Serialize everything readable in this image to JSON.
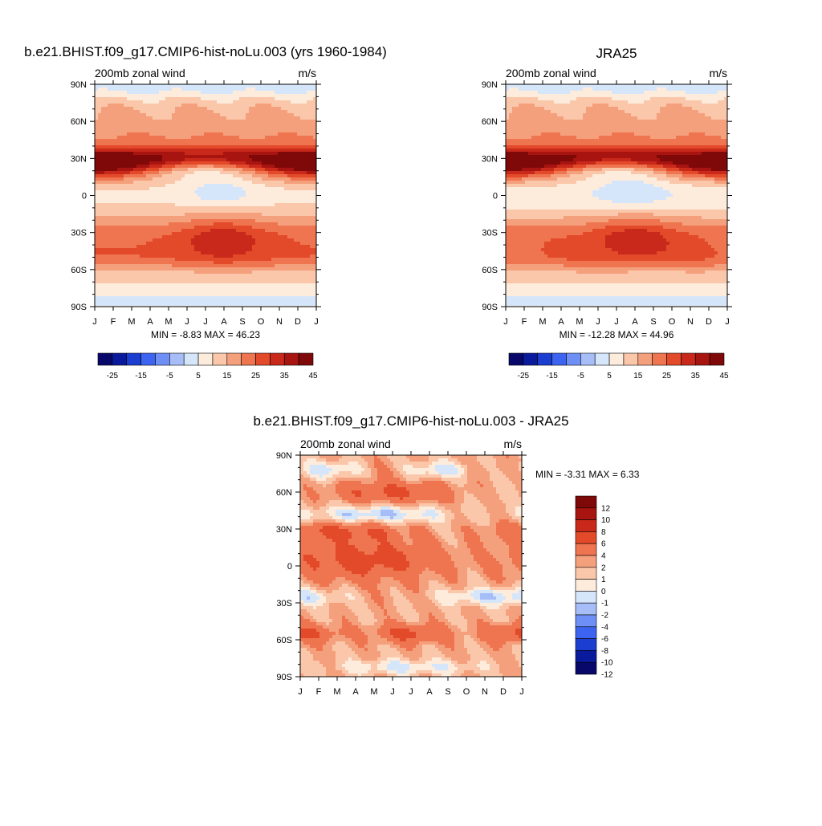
{
  "colors": {
    "levels": [
      "#08086b",
      "#0a1a9c",
      "#1c3ed0",
      "#3c64f0",
      "#6e8ff5",
      "#a6bdf7",
      "#d6e6fa",
      "#fdebdc",
      "#fbc7aa",
      "#f5a07c",
      "#ef7450",
      "#e34a2a",
      "#c9291a",
      "#a81410",
      "#7f0808"
    ],
    "diff_levels": [
      "#08086b",
      "#0a1a9c",
      "#1c3ed0",
      "#3c64f0",
      "#6e8ff5",
      "#a6bdf7",
      "#d6e6fa",
      "#fdebdc",
      "#fbc7aa",
      "#f5a07c",
      "#ef7450",
      "#e34a2a",
      "#c9291a",
      "#a81410",
      "#7f0808"
    ]
  },
  "chart_data": [
    {
      "type": "heatmap",
      "title": "b.e21.BHIST.f09_g17.CMIP6-hist-noLu.003 (yrs 1960-1984)",
      "subtitle_left": "200mb zonal wind",
      "subtitle_right": "m/s",
      "x_ticks": [
        "J",
        "F",
        "M",
        "A",
        "M",
        "J",
        "J",
        "A",
        "S",
        "O",
        "N",
        "D",
        "J"
      ],
      "y_ticks": [
        "90N",
        "60N",
        "30N",
        "0",
        "30S",
        "60S",
        "90S"
      ],
      "stats": "MIN =  -8.83 MAX =  46.23",
      "min": -8.83,
      "max": 46.23,
      "colorbar_labels": [
        "-25",
        "-15",
        "-5",
        "5",
        "15",
        "25",
        "35",
        "45"
      ]
    },
    {
      "type": "heatmap",
      "title": "JRA25",
      "subtitle_left": "200mb zonal wind",
      "subtitle_right": "m/s",
      "x_ticks": [
        "J",
        "F",
        "M",
        "A",
        "M",
        "J",
        "J",
        "A",
        "S",
        "O",
        "N",
        "D",
        "J"
      ],
      "y_ticks": [
        "90N",
        "60N",
        "30N",
        "0",
        "30S",
        "60S",
        "90S"
      ],
      "stats": "MIN = -12.28 MAX =  44.96",
      "min": -12.28,
      "max": 44.96,
      "colorbar_labels": [
        "-25",
        "-15",
        "-5",
        "5",
        "15",
        "25",
        "35",
        "45"
      ]
    },
    {
      "type": "heatmap",
      "title": "b.e21.BHIST.f09_g17.CMIP6-hist-noLu.003 - JRA25",
      "subtitle_left": "200mb zonal wind",
      "subtitle_right": "m/s",
      "x_ticks": [
        "J",
        "F",
        "M",
        "A",
        "M",
        "J",
        "J",
        "A",
        "S",
        "O",
        "N",
        "D",
        "J"
      ],
      "y_ticks": [
        "90N",
        "60N",
        "30N",
        "0",
        "30S",
        "60S",
        "90S"
      ],
      "stats": "MIN =  -3.31 MAX =   6.33",
      "min": -3.31,
      "max": 6.33,
      "colorbar_labels": [
        "12",
        "10",
        "8",
        "6",
        "4",
        "2",
        "1",
        "0",
        "-1",
        "-2",
        "-4",
        "-6",
        "-8",
        "-10",
        "-12"
      ]
    }
  ]
}
